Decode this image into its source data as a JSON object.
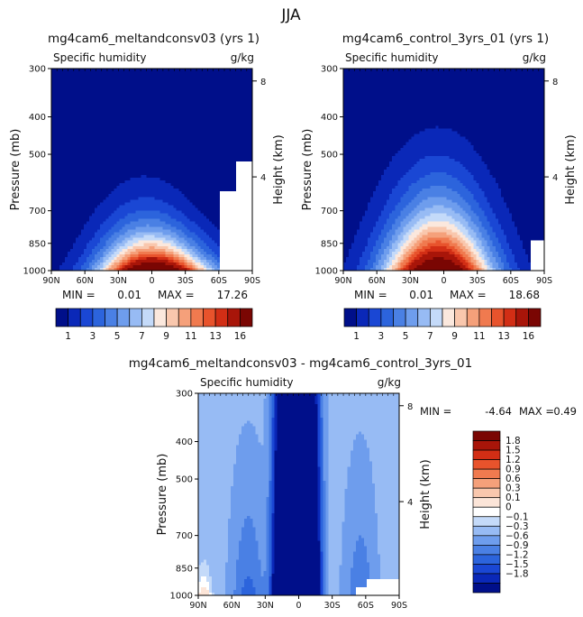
{
  "figure": {
    "title": "JJA"
  },
  "chart_data": [
    {
      "type": "heatmap",
      "title": "mg4cam6_meltandconsv03 (yrs 1)",
      "variable": "Specific humidity",
      "units": "g/kg",
      "ylabel": "Pressure (mb)",
      "y2label": "Height (km)",
      "x_ticks": [
        "90N",
        "60N",
        "30N",
        "0",
        "30S",
        "60S",
        "90S"
      ],
      "y_ticks": [
        "300",
        "400",
        "500",
        "700",
        "850",
        "1000"
      ],
      "y2_ticks": [
        "8",
        "4"
      ],
      "min_label": "MIN =",
      "min_value": "0.01",
      "max_label": "MAX =",
      "max_value": "17.26",
      "colorbar_labels": [
        "1",
        "3",
        "5",
        "7",
        "9",
        "11",
        "13",
        "16"
      ],
      "peak": {
        "lat": 0,
        "pressure": 1000,
        "value": 17.26
      }
    },
    {
      "type": "heatmap",
      "title": "mg4cam6_control_3yrs_01 (yrs 1)",
      "variable": "Specific humidity",
      "units": "g/kg",
      "ylabel": "Pressure (mb)",
      "y2label": "Height (km)",
      "x_ticks": [
        "90N",
        "60N",
        "30N",
        "0",
        "30S",
        "60S",
        "90S"
      ],
      "y_ticks": [
        "300",
        "400",
        "500",
        "700",
        "850",
        "1000"
      ],
      "y2_ticks": [
        "8",
        "4"
      ],
      "min_label": "MIN =",
      "min_value": "0.01",
      "max_label": "MAX =",
      "max_value": "18.68",
      "colorbar_labels": [
        "1",
        "3",
        "5",
        "7",
        "9",
        "11",
        "13",
        "16"
      ],
      "peak": {
        "lat": 5,
        "pressure": 1000,
        "value": 18.68
      }
    },
    {
      "type": "heatmap",
      "title": "mg4cam6_meltandconsv03 - mg4cam6_control_3yrs_01",
      "variable": "Specific humidity",
      "units": "g/kg",
      "ylabel": "Pressure (mb)",
      "y2label": "Height (km)",
      "x_ticks": [
        "90N",
        "60N",
        "30N",
        "0",
        "30S",
        "60S",
        "90S"
      ],
      "y_ticks": [
        "300",
        "400",
        "500",
        "700",
        "850",
        "1000"
      ],
      "y2_ticks": [
        "8",
        "4"
      ],
      "min_label": "MIN =",
      "min_value": "-4.64",
      "max_label": "MAX =",
      "max_value": "0.49",
      "colorbar_labels": [
        "1.8",
        "1.5",
        "1.2",
        "0.9",
        "0.6",
        "0.3",
        "0.1",
        "0",
        "−0.1",
        "−0.3",
        "−0.6",
        "−0.9",
        "−1.2",
        "−1.5",
        "−1.8"
      ]
    }
  ],
  "colors": {
    "abs_levels": [
      "#000f8a",
      "#0a28b8",
      "#1a47d4",
      "#2c64dc",
      "#4a80e4",
      "#6e9ded",
      "#97bbf4",
      "#c4daf9",
      "#fbe8dd",
      "#f9c7ad",
      "#f5a07a",
      "#f07a4f",
      "#e8532c",
      "#d22e15",
      "#a81509",
      "#7a0603"
    ],
    "diff_levels": [
      "#7a0603",
      "#a81509",
      "#d22e15",
      "#e8532c",
      "#f07a4f",
      "#f5a07a",
      "#f9c7ad",
      "#fce5d8",
      "#ffffff",
      "#c4daf9",
      "#97bbf4",
      "#6e9ded",
      "#4a80e4",
      "#2c64dc",
      "#1a47d4",
      "#0a28b8",
      "#000f8a"
    ],
    "missing": "#ffffff"
  }
}
